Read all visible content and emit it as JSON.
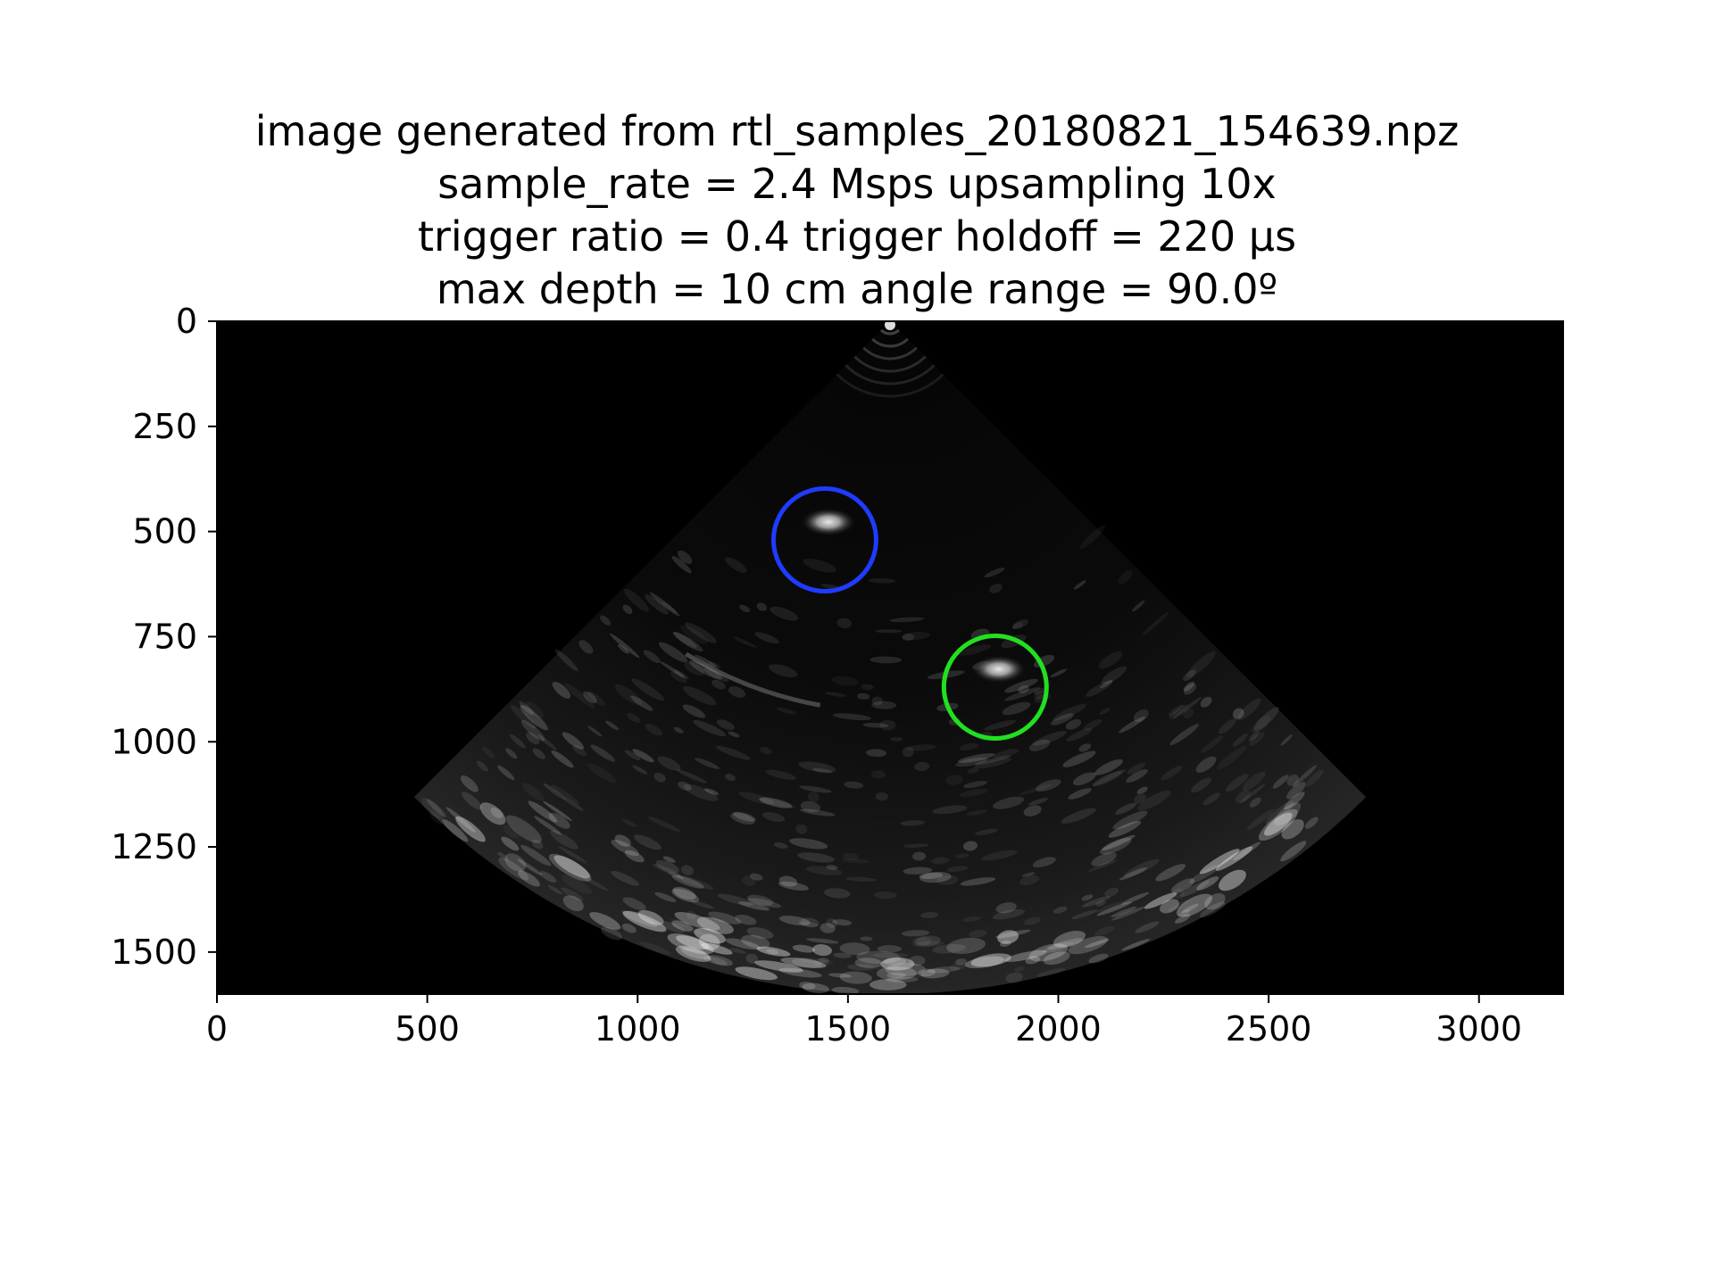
{
  "title_lines": [
    "image generated from rtl_samples_20180821_154639.npz",
    "sample_rate = 2.4 Msps  upsampling 10x",
    "trigger ratio = 0.4  trigger holdoff = 220 µs",
    "max depth = 10 cm  angle range = 90.0º"
  ],
  "axes": {
    "x": {
      "range": [
        0,
        3200
      ],
      "ticks": [
        0,
        500,
        1000,
        1500,
        2000,
        2500,
        3000
      ],
      "tick_labels": [
        "0",
        "500",
        "1000",
        "1500",
        "2000",
        "2500",
        "3000"
      ]
    },
    "y": {
      "range": [
        0,
        1600
      ],
      "inverted": true,
      "ticks": [
        0,
        250,
        500,
        750,
        1000,
        1250,
        1500
      ],
      "tick_labels": [
        "0",
        "250",
        "500",
        "750",
        "1000",
        "1250",
        "1500"
      ]
    }
  },
  "image": {
    "type": "ultrasound-sector-scan",
    "apex": [
      1600,
      0
    ],
    "max_radius": 1600,
    "angle_range_deg": 90
  },
  "markers": [
    {
      "name": "blue-circle",
      "center": [
        1445,
        520
      ],
      "radius": 122,
      "color": "#1f3bff"
    },
    {
      "name": "green-circle",
      "center": [
        1850,
        870
      ],
      "radius": 122,
      "color": "#22e01f"
    }
  ],
  "colors": {
    "background": "#ffffff",
    "image_background": "#000000"
  }
}
